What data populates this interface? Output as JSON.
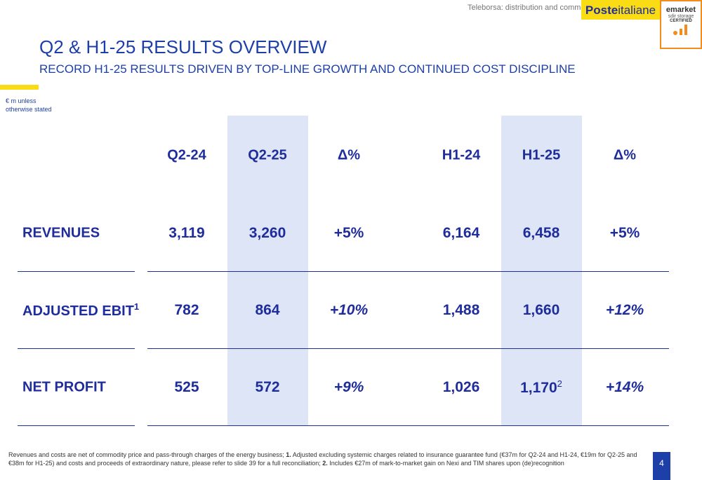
{
  "header": {
    "notice": "Teleborsa: distribution and commercial use strictly prohibited",
    "logo": {
      "bold": "Poste",
      "light": "italiane"
    },
    "badge": {
      "name": "emarket",
      "sub": "sdir storage",
      "cert": "CERTIFIED"
    }
  },
  "title": "Q2 & H1-25 RESULTS OVERVIEW",
  "subtitle": "RECORD H1-25 RESULTS DRIVEN BY TOP-LINE GROWTH AND CONTINUED COST DISCIPLINE",
  "units": "€ m unless otherwise stated",
  "table": {
    "columns": [
      "Q2-24",
      "Q2-25",
      "Δ%",
      "H1-24",
      "H1-25",
      "Δ%"
    ],
    "rows": [
      {
        "label": "REVENUES",
        "cells": [
          "3,119",
          "3,260",
          "+5%",
          "6,164",
          "6,458",
          "+5%"
        ]
      },
      {
        "label": "ADJUSTED EBIT",
        "note": "1",
        "cells": [
          "782",
          "864",
          "+10%",
          "1,488",
          "1,660",
          "+12%"
        ]
      },
      {
        "label": "NET PROFIT",
        "cells": [
          "525",
          "572",
          "+9%",
          "1,026",
          "1,170",
          "+14%"
        ],
        "cell_note": "2"
      }
    ]
  },
  "footnote": [
    "Revenues and costs are net of commodity price and pass-through charges of the energy business; ",
    "1.",
    " Adjusted excluding systemic charges related to insurance guarantee fund (€37m for Q2-24 and H1-24, €19m for Q2-25 and €38m for H1-25) and costs and proceeds of extraordinary nature, please refer to slide 39 for a full reconciliation; ",
    "2.",
    " Includes €27m of mark-to-market gain on Nexi and TIM shares upon (de)recognition"
  ],
  "page": "4"
}
